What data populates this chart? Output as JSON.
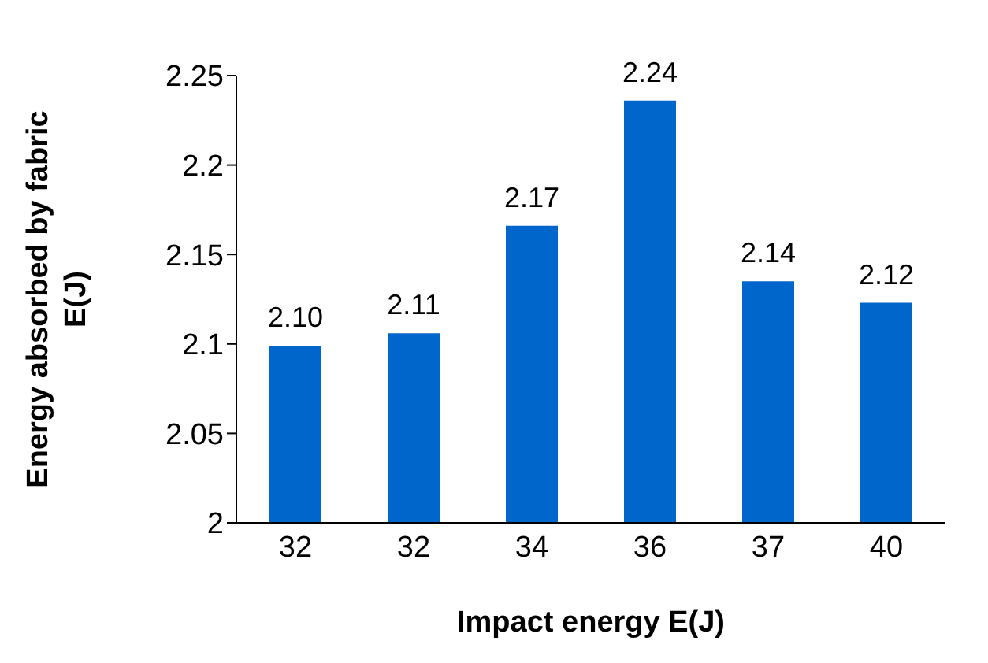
{
  "chart_data": {
    "type": "bar",
    "xlabel": "Impact energy  E(J)",
    "ylabel": "Energy absorbed by fabric\nE(J)",
    "categories": [
      "32",
      "32",
      "34",
      "36",
      "37",
      "40"
    ],
    "values": [
      2.099,
      2.106,
      2.166,
      2.236,
      2.135,
      2.123
    ],
    "value_labels": [
      "2.10",
      "2.11",
      "2.17",
      "2.24",
      "2.14",
      "2.12"
    ],
    "color": "#0066cc",
    "ylim": [
      2,
      2.25
    ],
    "yticks": [
      2,
      2.05,
      2.1,
      2.15,
      2.2,
      2.25
    ]
  }
}
